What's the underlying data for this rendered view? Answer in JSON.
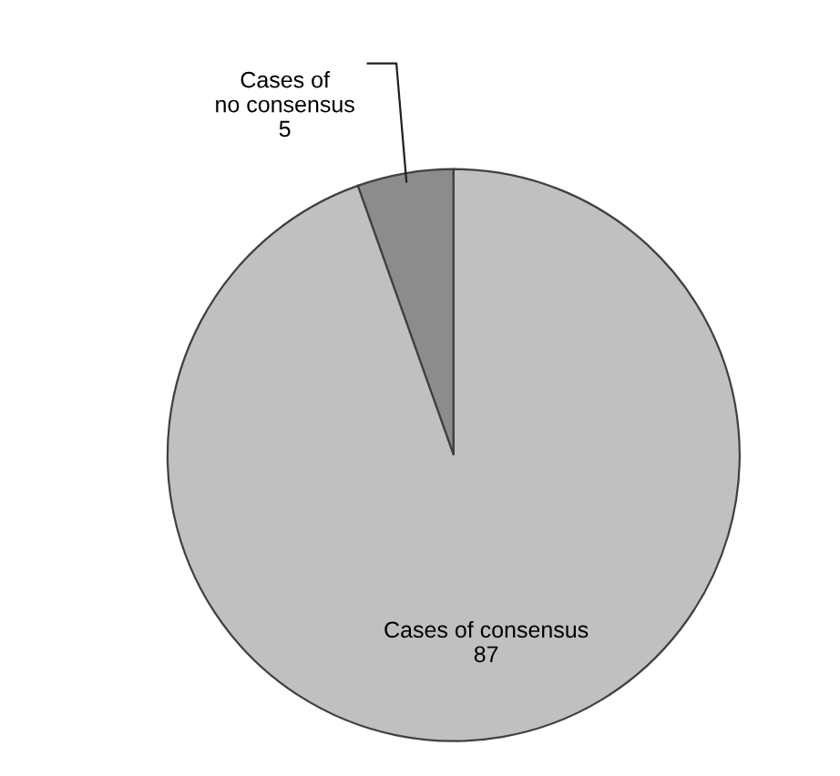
{
  "chart_data": {
    "type": "pie",
    "categories": [
      "Cases of\nno consensus",
      "Cases of consensus"
    ],
    "values": [
      5,
      87
    ],
    "colors": [
      "#8c8c8c",
      "#c0c0c0"
    ],
    "data_labels": true
  }
}
